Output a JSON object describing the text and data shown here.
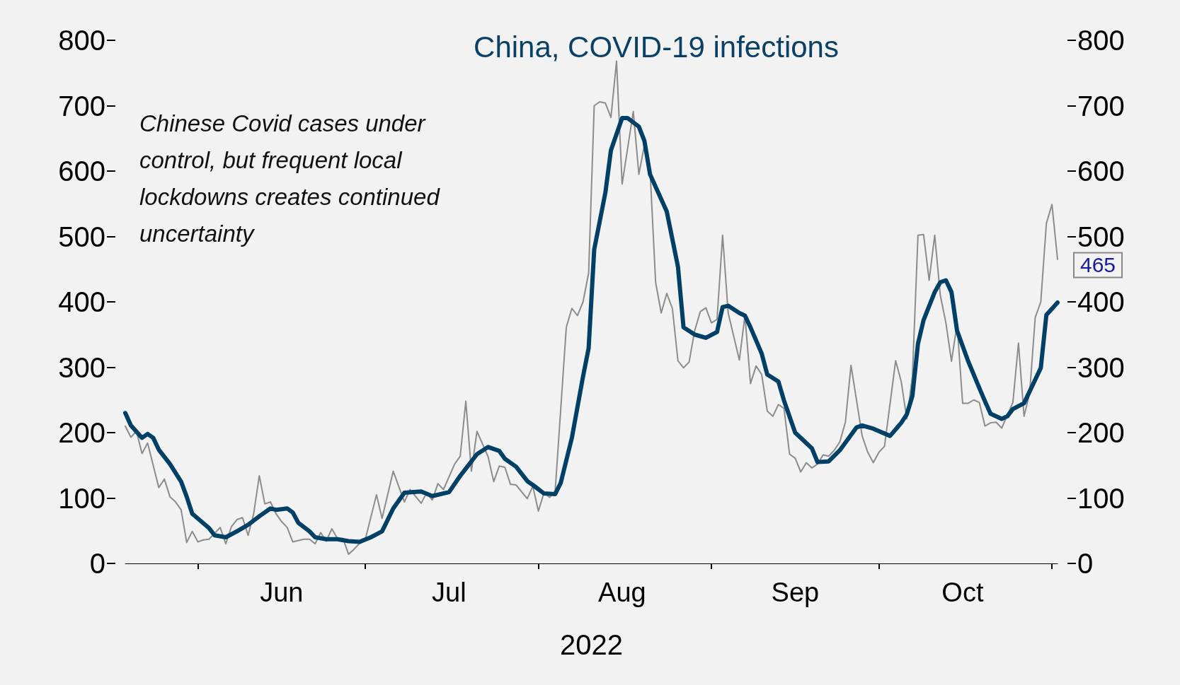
{
  "chart_data": {
    "type": "line",
    "title": "China, COVID-19 infections",
    "xlabel": "2022",
    "xlim": [
      "2022-05-19",
      "2022-11-02"
    ],
    "xticks": [
      {
        "value": "2022-06-01",
        "label": null
      },
      {
        "value": "2022-06-16",
        "label": "Jun"
      },
      {
        "value": "2022-07-01",
        "label": null
      },
      {
        "value": "2022-07-16",
        "label": "Jul"
      },
      {
        "value": "2022-08-01",
        "label": null
      },
      {
        "value": "2022-08-16",
        "label": "Aug"
      },
      {
        "value": "2022-09-01",
        "label": null
      },
      {
        "value": "2022-09-16",
        "label": "Sep"
      },
      {
        "value": "2022-10-01",
        "label": null
      },
      {
        "value": "2022-10-16",
        "label": "Oct"
      },
      {
        "value": "2022-11-01",
        "label": null
      }
    ],
    "ylim": [
      0,
      800
    ],
    "yticks": [
      0,
      100,
      200,
      300,
      400,
      500,
      600,
      700,
      800
    ],
    "y2lim": [
      0,
      800
    ],
    "y2ticks": [
      0,
      100,
      200,
      300,
      400,
      500,
      600,
      700,
      800
    ],
    "grid": false,
    "marker": "none",
    "line_style": "solid",
    "annotations": [
      "Chinese Covid cases under control, but frequent local lockdowns creates continued uncertainty",
      {
        "text": "465",
        "x": "2022-11-02",
        "y": 465
      }
    ],
    "series": [
      {
        "color": "#8c8c8c",
        "x": [
          "2022-05-19",
          "2022-05-20",
          "2022-05-21",
          "2022-05-22",
          "2022-05-23",
          "2022-05-25",
          "2022-05-26",
          "2022-05-27",
          "2022-05-28",
          "2022-05-29",
          "2022-05-30",
          "2022-05-31",
          "2022-06-01",
          "2022-06-02",
          "2022-06-03",
          "2022-06-05",
          "2022-06-06",
          "2022-06-07",
          "2022-06-08",
          "2022-06-09",
          "2022-06-10",
          "2022-06-11",
          "2022-06-12",
          "2022-06-13",
          "2022-06-14",
          "2022-06-15",
          "2022-06-16",
          "2022-06-17",
          "2022-06-18",
          "2022-06-20",
          "2022-06-21",
          "2022-06-22",
          "2022-06-23",
          "2022-06-24",
          "2022-06-25",
          "2022-06-26",
          "2022-06-27",
          "2022-06-28",
          "2022-06-29",
          "2022-06-30",
          "2022-07-01",
          "2022-07-03",
          "2022-07-04",
          "2022-07-06",
          "2022-07-08",
          "2022-07-09",
          "2022-07-11",
          "2022-07-12",
          "2022-07-13",
          "2022-07-14",
          "2022-07-15",
          "2022-07-17",
          "2022-07-18",
          "2022-07-19",
          "2022-07-20",
          "2022-07-21",
          "2022-07-23",
          "2022-07-24",
          "2022-07-25",
          "2022-07-26",
          "2022-07-27",
          "2022-07-28",
          "2022-07-30",
          "2022-07-31",
          "2022-08-01",
          "2022-08-02",
          "2022-08-03",
          "2022-08-04",
          "2022-08-06",
          "2022-08-07",
          "2022-08-08",
          "2022-08-09",
          "2022-08-10",
          "2022-08-11",
          "2022-08-12",
          "2022-08-13",
          "2022-08-14",
          "2022-08-15",
          "2022-08-16",
          "2022-08-18",
          "2022-08-19",
          "2022-08-20",
          "2022-08-21",
          "2022-08-22",
          "2022-08-23",
          "2022-08-24",
          "2022-08-25",
          "2022-08-26",
          "2022-08-27",
          "2022-08-28",
          "2022-08-29",
          "2022-08-30",
          "2022-08-31",
          "2022-09-01",
          "2022-09-02",
          "2022-09-03",
          "2022-09-04",
          "2022-09-06",
          "2022-09-07",
          "2022-09-08",
          "2022-09-09",
          "2022-09-10",
          "2022-09-11",
          "2022-09-12",
          "2022-09-13",
          "2022-09-14",
          "2022-09-15",
          "2022-09-16",
          "2022-09-17",
          "2022-09-18",
          "2022-09-19",
          "2022-09-20",
          "2022-09-21",
          "2022-09-22",
          "2022-09-23",
          "2022-09-24",
          "2022-09-25",
          "2022-09-26",
          "2022-09-27",
          "2022-09-28",
          "2022-09-29",
          "2022-09-30",
          "2022-10-01",
          "2022-10-02",
          "2022-10-04",
          "2022-10-05",
          "2022-10-06",
          "2022-10-07",
          "2022-10-08",
          "2022-10-09",
          "2022-10-10",
          "2022-10-11",
          "2022-10-12",
          "2022-10-13",
          "2022-10-14",
          "2022-10-15",
          "2022-10-16",
          "2022-10-17",
          "2022-10-18",
          "2022-10-19",
          "2022-10-20",
          "2022-10-21",
          "2022-10-22",
          "2022-10-23",
          "2022-10-25",
          "2022-10-26",
          "2022-10-27",
          "2022-10-28",
          "2022-10-29",
          "2022-10-30",
          "2022-10-31",
          "2022-11-01",
          "2022-11-02"
        ],
        "values": [
          210,
          193,
          202,
          168,
          184,
          116,
          129,
          102,
          94,
          82,
          32,
          49,
          33,
          36,
          37,
          55,
          30,
          56,
          67,
          70,
          43,
          76,
          134,
          91,
          94,
          76,
          64,
          55,
          33,
          37,
          37,
          30,
          47,
          34,
          53,
          38,
          38,
          14,
          22,
          31,
          37,
          105,
          69,
          141,
          94,
          113,
          92,
          108,
          97,
          122,
          113,
          152,
          164,
          248,
          141,
          202,
          163,
          125,
          149,
          147,
          121,
          120,
          99,
          118,
          80,
          108,
          101,
          110,
          361,
          390,
          379,
          400,
          444,
          700,
          706,
          704,
          682,
          768,
          580,
          691,
          595,
          640,
          602,
          430,
          383,
          413,
          390,
          310,
          299,
          308,
          356,
          385,
          391,
          368,
          373,
          502,
          383,
          311,
          379,
          275,
          302,
          289,
          233,
          225,
          243,
          237,
          167,
          161,
          140,
          154,
          146,
          152,
          166,
          164,
          173,
          186,
          216,
          303,
          249,
          195,
          170,
          154,
          170,
          179,
          310,
          278,
          221,
          286,
          502,
          503,
          433,
          502,
          410,
          368,
          309,
          366,
          245,
          245,
          250,
          246,
          210,
          215,
          216,
          207,
          246,
          337,
          225,
          260,
          376,
          400,
          520,
          549,
          465
        ]
      },
      {
        "color": "#003f66",
        "x": [
          "2022-05-19",
          "2022-05-20",
          "2022-05-22",
          "2022-05-23",
          "2022-05-24",
          "2022-05-25",
          "2022-05-27",
          "2022-05-29",
          "2022-05-30",
          "2022-05-31",
          "2022-06-03",
          "2022-06-04",
          "2022-06-06",
          "2022-06-08",
          "2022-06-10",
          "2022-06-12",
          "2022-06-14",
          "2022-06-15",
          "2022-06-17",
          "2022-06-18",
          "2022-06-19",
          "2022-06-21",
          "2022-06-22",
          "2022-06-24",
          "2022-06-26",
          "2022-06-28",
          "2022-06-30",
          "2022-07-02",
          "2022-07-04",
          "2022-07-06",
          "2022-07-08",
          "2022-07-11",
          "2022-07-13",
          "2022-07-16",
          "2022-07-18",
          "2022-07-21",
          "2022-07-23",
          "2022-07-25",
          "2022-07-26",
          "2022-07-28",
          "2022-07-30",
          "2022-07-31",
          "2022-08-02",
          "2022-08-04",
          "2022-08-05",
          "2022-08-07",
          "2022-08-09",
          "2022-08-10",
          "2022-08-11",
          "2022-08-13",
          "2022-08-14",
          "2022-08-16",
          "2022-08-17",
          "2022-08-19",
          "2022-08-20",
          "2022-08-21",
          "2022-08-24",
          "2022-08-26",
          "2022-08-27",
          "2022-08-29",
          "2022-08-31",
          "2022-09-02",
          "2022-09-03",
          "2022-09-04",
          "2022-09-06",
          "2022-09-07",
          "2022-09-08",
          "2022-09-10",
          "2022-09-11",
          "2022-09-13",
          "2022-09-14",
          "2022-09-16",
          "2022-09-19",
          "2022-09-20",
          "2022-09-22",
          "2022-09-24",
          "2022-09-27",
          "2022-09-28",
          "2022-09-30",
          "2022-10-03",
          "2022-10-05",
          "2022-10-06",
          "2022-10-07",
          "2022-10-08",
          "2022-10-09",
          "2022-10-11",
          "2022-10-12",
          "2022-10-13",
          "2022-10-14",
          "2022-10-15",
          "2022-10-17",
          "2022-10-19",
          "2022-10-20",
          "2022-10-21",
          "2022-10-23",
          "2022-10-24",
          "2022-10-25",
          "2022-10-27",
          "2022-10-30",
          "2022-10-31",
          "2022-11-02"
        ],
        "values": [
          230,
          211,
          192,
          198,
          192,
          174,
          152,
          125,
          102,
          76,
          54,
          43,
          40,
          49,
          59,
          72,
          84,
          82,
          84,
          78,
          62,
          49,
          40,
          37,
          37,
          34,
          33,
          40,
          49,
          84,
          108,
          110,
          103,
          109,
          134,
          167,
          178,
          172,
          160,
          148,
          126,
          120,
          107,
          106,
          123,
          192,
          286,
          329,
          480,
          567,
          632,
          681,
          681,
          668,
          646,
          595,
          538,
          454,
          361,
          350,
          345,
          354,
          392,
          394,
          383,
          379,
          361,
          321,
          289,
          278,
          249,
          200,
          176,
          155,
          156,
          173,
          208,
          211,
          206,
          195,
          215,
          228,
          256,
          336,
          372,
          415,
          430,
          433,
          415,
          356,
          309,
          268,
          248,
          229,
          221,
          225,
          236,
          245,
          299,
          380,
          399
        ]
      }
    ]
  }
}
